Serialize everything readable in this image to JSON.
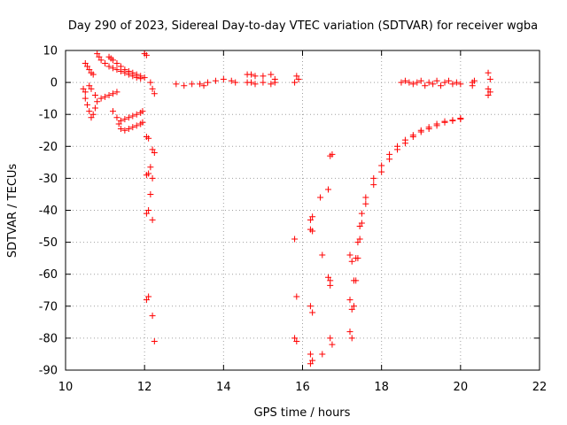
{
  "chart_data": {
    "type": "scatter",
    "title": "Day 290 of 2023, Sidereal Day-to-day VTEC variation (SDTVAR) for receiver wgba",
    "xlabel": "GPS time / hours",
    "ylabel": "SDTVAR / TECUs",
    "xlim": [
      10,
      22
    ],
    "ylim": [
      -90,
      10
    ],
    "xticks": [
      10,
      12,
      14,
      16,
      18,
      20,
      22
    ],
    "yticks": [
      10,
      0,
      -10,
      -20,
      -30,
      -40,
      -50,
      -60,
      -70,
      -80,
      -90
    ],
    "grid": true,
    "marker": "+",
    "marker_color": "#ff0000",
    "grid_color": "#a0a0a0",
    "series": [
      {
        "name": "SDTVAR",
        "points": [
          [
            10.5,
            -5
          ],
          [
            10.55,
            -7
          ],
          [
            10.6,
            -9
          ],
          [
            10.65,
            -11
          ],
          [
            10.7,
            -10
          ],
          [
            10.75,
            -8
          ],
          [
            10.8,
            -6
          ],
          [
            10.9,
            -5
          ],
          [
            11.0,
            -4.5
          ],
          [
            11.1,
            -4
          ],
          [
            11.2,
            -3.5
          ],
          [
            11.3,
            -3
          ],
          [
            10.45,
            -2
          ],
          [
            10.5,
            -3
          ],
          [
            10.6,
            -1
          ],
          [
            10.65,
            -2
          ],
          [
            10.75,
            -4
          ],
          [
            10.5,
            6
          ],
          [
            10.55,
            5
          ],
          [
            10.6,
            4
          ],
          [
            10.65,
            3
          ],
          [
            10.7,
            2.5
          ],
          [
            10.8,
            9
          ],
          [
            10.85,
            8
          ],
          [
            10.9,
            7
          ],
          [
            11.0,
            6
          ],
          [
            11.1,
            5
          ],
          [
            11.2,
            4.5
          ],
          [
            11.3,
            4
          ],
          [
            11.4,
            3.5
          ],
          [
            11.5,
            3
          ],
          [
            11.6,
            2.5
          ],
          [
            11.7,
            2
          ],
          [
            11.8,
            1.5
          ],
          [
            11.9,
            1.2
          ],
          [
            11.1,
            8
          ],
          [
            11.15,
            7.5
          ],
          [
            11.2,
            7
          ],
          [
            11.3,
            6
          ],
          [
            11.4,
            5
          ],
          [
            11.5,
            4
          ],
          [
            11.6,
            3.5
          ],
          [
            11.7,
            3
          ],
          [
            11.8,
            2.5
          ],
          [
            11.9,
            2
          ],
          [
            12.0,
            1.5
          ],
          [
            11.2,
            -9
          ],
          [
            11.3,
            -11
          ],
          [
            11.35,
            -13
          ],
          [
            11.4,
            -14.5
          ],
          [
            11.5,
            -15
          ],
          [
            11.6,
            -14.5
          ],
          [
            11.7,
            -14
          ],
          [
            11.8,
            -13.5
          ],
          [
            11.9,
            -13
          ],
          [
            11.95,
            -12.5
          ],
          [
            11.4,
            -12
          ],
          [
            11.5,
            -11.5
          ],
          [
            11.6,
            -11
          ],
          [
            11.7,
            -10.5
          ],
          [
            11.8,
            -10
          ],
          [
            11.9,
            -9.5
          ],
          [
            11.95,
            -9
          ],
          [
            12.0,
            9
          ],
          [
            12.05,
            8.5
          ],
          [
            12.05,
            -17
          ],
          [
            12.1,
            -17.5
          ],
          [
            12.15,
            0
          ],
          [
            12.2,
            -2
          ],
          [
            12.25,
            -3.5
          ],
          [
            12.2,
            -21
          ],
          [
            12.25,
            -22
          ],
          [
            12.15,
            -26.5
          ],
          [
            12.2,
            -30
          ],
          [
            12.05,
            -29
          ],
          [
            12.1,
            -28.5
          ],
          [
            12.15,
            -35
          ],
          [
            12.2,
            -43
          ],
          [
            12.05,
            -41
          ],
          [
            12.1,
            -40
          ],
          [
            12.05,
            -68
          ],
          [
            12.1,
            -67
          ],
          [
            12.2,
            -73
          ],
          [
            12.25,
            -81
          ],
          [
            12.8,
            -0.5
          ],
          [
            13.0,
            -1
          ],
          [
            13.2,
            -0.5
          ],
          [
            13.4,
            -0.5
          ],
          [
            13.6,
            0
          ],
          [
            13.8,
            0.5
          ],
          [
            14.0,
            1
          ],
          [
            14.2,
            0.5
          ],
          [
            14.3,
            0
          ],
          [
            13.5,
            -1
          ],
          [
            14.6,
            2.5
          ],
          [
            14.7,
            2.5
          ],
          [
            14.8,
            2
          ],
          [
            14.6,
            0
          ],
          [
            14.7,
            0
          ],
          [
            14.8,
            -0.5
          ],
          [
            15.0,
            2
          ],
          [
            15.2,
            2.5
          ],
          [
            15.3,
            1
          ],
          [
            15.0,
            0
          ],
          [
            15.2,
            -0.5
          ],
          [
            15.3,
            0
          ],
          [
            15.8,
            0
          ],
          [
            15.85,
            2
          ],
          [
            15.9,
            1
          ],
          [
            15.8,
            -49
          ],
          [
            15.85,
            -67
          ],
          [
            15.8,
            -80
          ],
          [
            15.85,
            -81
          ],
          [
            16.2,
            -43
          ],
          [
            16.25,
            -42
          ],
          [
            16.2,
            -46
          ],
          [
            16.25,
            -46.5
          ],
          [
            16.2,
            -70
          ],
          [
            16.25,
            -72
          ],
          [
            16.2,
            -85
          ],
          [
            16.25,
            -87
          ],
          [
            16.2,
            -88
          ],
          [
            16.5,
            -85
          ],
          [
            16.45,
            -36
          ],
          [
            16.5,
            -54
          ],
          [
            16.65,
            -61
          ],
          [
            16.7,
            -62
          ],
          [
            16.7,
            -63.5
          ],
          [
            16.7,
            -80
          ],
          [
            16.75,
            -82
          ],
          [
            16.65,
            -33.5
          ],
          [
            16.7,
            -23
          ],
          [
            16.75,
            -22.5
          ],
          [
            17.2,
            -54
          ],
          [
            17.25,
            -56
          ],
          [
            17.2,
            -68
          ],
          [
            17.25,
            -71
          ],
          [
            17.2,
            -78
          ],
          [
            17.25,
            -80
          ],
          [
            17.3,
            -70
          ],
          [
            17.35,
            -62
          ],
          [
            17.4,
            -55
          ],
          [
            17.45,
            -49
          ],
          [
            17.5,
            -44
          ],
          [
            17.6,
            -38
          ],
          [
            17.8,
            -32
          ],
          [
            18.0,
            -28
          ],
          [
            18.2,
            -24
          ],
          [
            18.4,
            -21
          ],
          [
            18.6,
            -19
          ],
          [
            18.8,
            -17
          ],
          [
            19.0,
            -15.5
          ],
          [
            19.2,
            -14.5
          ],
          [
            19.4,
            -13.5
          ],
          [
            19.6,
            -12.5
          ],
          [
            19.8,
            -12
          ],
          [
            20.0,
            -11.5
          ],
          [
            17.3,
            -62
          ],
          [
            17.35,
            -55
          ],
          [
            17.4,
            -50
          ],
          [
            17.45,
            -45
          ],
          [
            17.5,
            -41
          ],
          [
            17.6,
            -36
          ],
          [
            17.8,
            -30
          ],
          [
            18.0,
            -26
          ],
          [
            18.2,
            -22.5
          ],
          [
            18.4,
            -20
          ],
          [
            18.6,
            -18
          ],
          [
            18.8,
            -16.5
          ],
          [
            19.0,
            -15
          ],
          [
            19.2,
            -14
          ],
          [
            19.4,
            -13
          ],
          [
            19.6,
            -12.2
          ],
          [
            19.8,
            -11.8
          ],
          [
            20.0,
            -11.2
          ],
          [
            18.5,
            0
          ],
          [
            18.6,
            0.5
          ],
          [
            18.7,
            0
          ],
          [
            18.8,
            -0.5
          ],
          [
            18.9,
            0
          ],
          [
            19.0,
            0.5
          ],
          [
            19.1,
            -1
          ],
          [
            19.2,
            0
          ],
          [
            19.3,
            -0.5
          ],
          [
            19.4,
            0.5
          ],
          [
            19.5,
            -1
          ],
          [
            19.6,
            0
          ],
          [
            19.7,
            0.5
          ],
          [
            19.8,
            -0.5
          ],
          [
            19.9,
            0
          ],
          [
            20.0,
            -0.5
          ],
          [
            20.3,
            0
          ],
          [
            20.35,
            0.5
          ],
          [
            20.3,
            -1
          ],
          [
            20.7,
            3
          ],
          [
            20.75,
            1
          ],
          [
            20.7,
            -2
          ],
          [
            20.75,
            -3
          ],
          [
            20.7,
            -4
          ]
        ]
      }
    ]
  }
}
